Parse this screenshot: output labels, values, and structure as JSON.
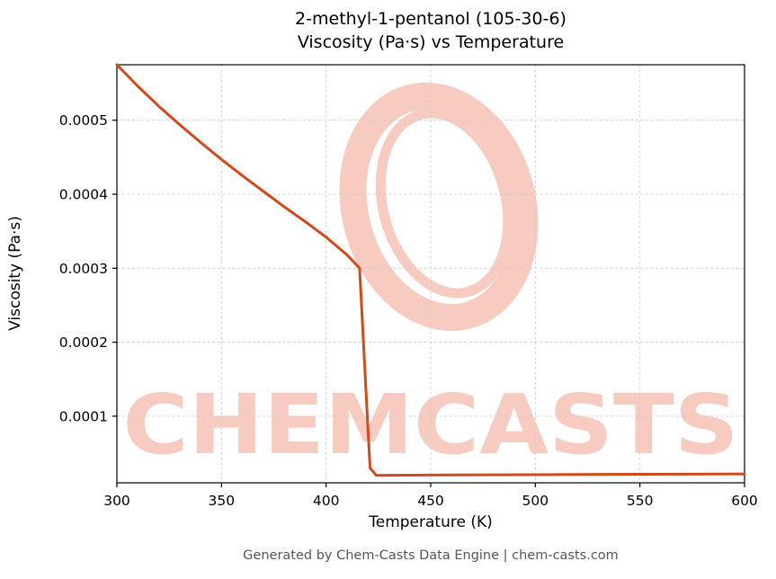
{
  "page": {
    "title_line1": "2-methyl-1-pentanol (105-30-6)",
    "title_line2": "Viscosity (Pa·s) vs Temperature",
    "footer": "Generated by Chem-Casts Data Engine | chem-casts.com",
    "watermark_text": "CHEMCASTS"
  },
  "colors": {
    "line": "#d14a1e",
    "watermark": "#f7cbc0",
    "grid": "#cccccc",
    "axis": "#000000",
    "footer_text": "#555555"
  },
  "chart_data": {
    "type": "line",
    "title": "2-methyl-1-pentanol (105-30-6) — Viscosity (Pa·s) vs Temperature",
    "xlabel": "Temperature (K)",
    "ylabel": "Viscosity (Pa·s)",
    "xlim": [
      300,
      600
    ],
    "ylim": [
      1e-05,
      0.000575
    ],
    "x_ticks": [
      300,
      350,
      400,
      450,
      500,
      550,
      600
    ],
    "x_tick_labels": [
      "300",
      "350",
      "400",
      "450",
      "500",
      "550",
      "600"
    ],
    "y_ticks": [
      0.0001,
      0.0002,
      0.0003,
      0.0004,
      0.0005
    ],
    "y_tick_labels": [
      "0.0001",
      "0.0002",
      "0.0003",
      "0.0004",
      "0.0005"
    ],
    "grid": true,
    "legend": false,
    "series": [
      {
        "name": "viscosity",
        "x": [
          300,
          310,
          320,
          330,
          340,
          350,
          360,
          370,
          380,
          390,
          400,
          410,
          416,
          421,
          424,
          450,
          500,
          550,
          600
        ],
        "y": [
          0.000575,
          0.000546,
          0.000519,
          0.000494,
          0.00047,
          0.000447,
          0.000425,
          0.000404,
          0.000383,
          0.000363,
          0.000342,
          0.000318,
          0.0003,
          3e-05,
          2e-05,
          2.05e-05,
          2.1e-05,
          2.15e-05,
          2.2e-05
        ]
      }
    ]
  }
}
